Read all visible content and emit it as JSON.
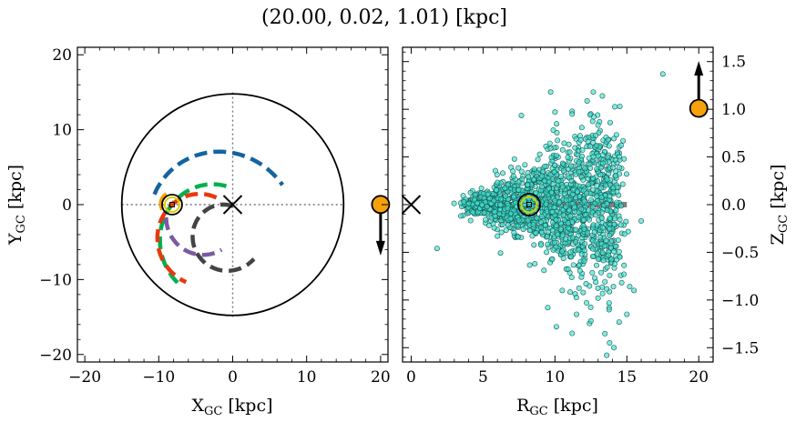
{
  "title": "(20.00, 0.02, 1.01) [kpc]",
  "chart_data": [
    {
      "type": "scatter",
      "xlabel": "X<sub>GC</sub> [kpc]",
      "ylabel": "Y<sub>GC</sub> [kpc]",
      "xlabel_text": "X",
      "xlabel_sub": "GC",
      "xlabel_unit": " [kpc]",
      "ylabel_text": "Y",
      "ylabel_sub": "GC",
      "ylabel_unit": " [kpc]",
      "xlim": [
        -21,
        21
      ],
      "ylim": [
        -21,
        21
      ],
      "xticks": [
        -20,
        -10,
        0,
        10,
        20
      ],
      "xtick_labels": [
        "−20",
        "−10",
        "0",
        "10",
        "20"
      ],
      "yticks": [
        -20,
        -10,
        0,
        10,
        20
      ],
      "ytick_labels": [
        "−20",
        "−10",
        "0",
        "10",
        "20"
      ],
      "boundary_circle_radius": 15,
      "galactic_center": [
        0,
        0
      ],
      "sun_position": [
        -8.2,
        0
      ],
      "object_position": [
        20.0,
        0.02
      ],
      "object_velocity_arrow": "down",
      "spiral_arms": [
        {
          "color": "#1464a0",
          "style": "dashed",
          "radius": 10.0,
          "theta_start": 150,
          "theta_end": 30
        },
        {
          "color": "#00b050",
          "style": "dashed",
          "radius": 7.5,
          "theta_start": 80,
          "theta_end": 230
        },
        {
          "color": "#e8380d",
          "style": "dashed",
          "radius": 6.0,
          "theta_start": 70,
          "theta_end": 250
        },
        {
          "color": "#444444",
          "style": "dashed",
          "radius": 4.5,
          "theta_start": 75,
          "theta_end": 320
        },
        {
          "color": "#7a5aa0",
          "style": "dashed",
          "radius": 5.0,
          "theta_start": 180,
          "theta_end": 300
        },
        {
          "color": "#f0a000",
          "style": "solid",
          "radius": 1.5,
          "theta_start": 120,
          "theta_end": 210
        }
      ]
    },
    {
      "type": "scatter",
      "xlabel_text": "R",
      "xlabel_sub": "GC",
      "xlabel_unit": " [kpc]",
      "ylabel_text": "Z",
      "ylabel_sub": "GC",
      "ylabel_unit": " [kpc]",
      "xlim": [
        -0.6,
        21
      ],
      "ylim": [
        -1.65,
        1.65
      ],
      "xticks": [
        0,
        5,
        10,
        15,
        20
      ],
      "xtick_labels": [
        "0",
        "5",
        "10",
        "15",
        "20"
      ],
      "yticks": [
        -1.5,
        -1.0,
        -0.5,
        0.0,
        0.5,
        1.0,
        1.5
      ],
      "ytick_labels": [
        "−1.5",
        "−1.0",
        "−0.5",
        "0.0",
        "0.5",
        "1.0",
        "1.5"
      ],
      "disk_line": {
        "x": [
          4,
          15
        ],
        "y": 0
      },
      "galactic_center": [
        0,
        0
      ],
      "sun_position": [
        8.2,
        0
      ],
      "object_position": [
        20.0,
        1.01
      ],
      "object_velocity_arrow": "up",
      "scatter_color": "#40e0d0",
      "scatter_description_points": [
        [
          17.5,
          1.37
        ],
        [
          9.7,
          1.18
        ],
        [
          13.3,
          1.14
        ],
        [
          10.0,
          0.97
        ],
        [
          12.7,
          0.92
        ],
        [
          11.2,
          0.95
        ],
        [
          12.9,
          0.62
        ],
        [
          13.0,
          0.51
        ],
        [
          14.2,
          0.47
        ],
        [
          13.8,
          0.09
        ],
        [
          1.8,
          -0.46
        ],
        [
          4.3,
          -0.08
        ],
        [
          14.5,
          -0.55
        ],
        [
          14.8,
          -0.73
        ],
        [
          15.2,
          -0.86
        ],
        [
          15.5,
          -0.9
        ],
        [
          13.0,
          -0.98
        ],
        [
          12.2,
          -1.03
        ],
        [
          10.1,
          -1.28
        ],
        [
          11.2,
          -1.35
        ],
        [
          12.5,
          -1.22
        ],
        [
          13.8,
          -1.45
        ],
        [
          14.1,
          -1.5
        ],
        [
          13.6,
          -1.58
        ],
        [
          15.0,
          -1.15
        ],
        [
          11.5,
          -1.15
        ],
        [
          9.5,
          -1.08
        ],
        [
          8.6,
          -0.62
        ],
        [
          6.0,
          -0.33
        ],
        [
          16.0,
          -0.17
        ]
      ]
    }
  ]
}
